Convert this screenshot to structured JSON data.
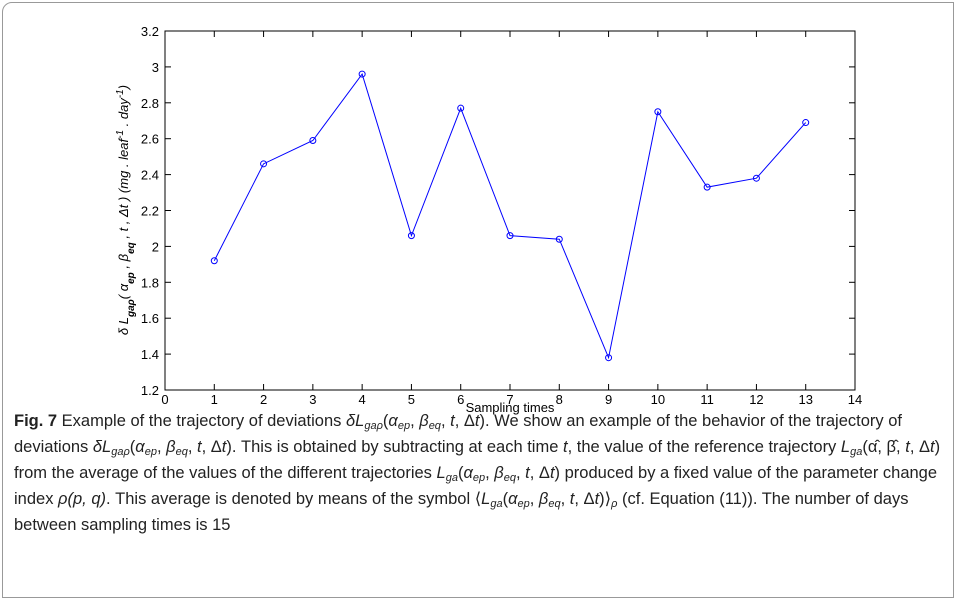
{
  "chart_data": {
    "type": "line",
    "xlabel": "Sampling times",
    "ylabel": [
      [
        "δ L",
        ""
      ],
      [
        "gaρ",
        "sub"
      ],
      [
        "( ",
        ""
      ],
      [
        "α",
        ""
      ],
      [
        "ep",
        "sub"
      ],
      [
        " , ",
        ""
      ],
      [
        "β",
        ""
      ],
      [
        "eq",
        "sub"
      ],
      [
        " , t , Δt ) (mg . leaf",
        ""
      ],
      [
        "-1",
        "sup"
      ],
      [
        " . day",
        ""
      ],
      [
        "-1",
        "sup"
      ],
      [
        ")",
        ""
      ]
    ],
    "x": [
      1,
      2,
      3,
      4,
      5,
      6,
      7,
      8,
      9,
      10,
      11,
      12,
      13
    ],
    "series": [
      {
        "color": "#0000ff",
        "values": [
          1.92,
          2.46,
          2.59,
          2.96,
          2.06,
          2.77,
          2.06,
          2.04,
          1.38,
          2.75,
          2.33,
          2.38,
          2.69
        ]
      }
    ],
    "xlim": [
      0,
      14
    ],
    "xticks": [
      0,
      1,
      2,
      3,
      4,
      5,
      6,
      7,
      8,
      9,
      10,
      11,
      12,
      13,
      14
    ],
    "ylim": [
      1.2,
      3.2
    ],
    "yticks": [
      1.2,
      1.4,
      1.6,
      1.8,
      2,
      2.2,
      2.4,
      2.6,
      2.8,
      3,
      3.2
    ]
  },
  "caption": [
    [
      "Fig. 7",
      "b"
    ],
    [
      " Example of the trajectory of deviations ",
      ""
    ],
    [
      "δL",
      "i"
    ],
    [
      "gaρ",
      "sub"
    ],
    [
      "(",
      ""
    ],
    [
      "α",
      "i"
    ],
    [
      "ep",
      "sub"
    ],
    [
      ", ",
      ""
    ],
    [
      "β",
      "i"
    ],
    [
      "eq",
      "sub"
    ],
    [
      ", ",
      ""
    ],
    [
      "t",
      "i"
    ],
    [
      ", Δ",
      ""
    ],
    [
      "t",
      "i"
    ],
    [
      "). We show an example of the behavior of the trajectory of deviations ",
      ""
    ],
    [
      "δL",
      "i"
    ],
    [
      "gaρ",
      "sub"
    ],
    [
      "(",
      ""
    ],
    [
      "α",
      "i"
    ],
    [
      "ep",
      "sub"
    ],
    [
      ", ",
      ""
    ],
    [
      "β",
      "i"
    ],
    [
      "eq",
      "sub"
    ],
    [
      ", ",
      ""
    ],
    [
      "t",
      "i"
    ],
    [
      ", Δ",
      ""
    ],
    [
      "t",
      "i"
    ],
    [
      "). This is obtained by subtracting at each time ",
      ""
    ],
    [
      "t",
      "i"
    ],
    [
      ", the value of the reference trajectory ",
      ""
    ],
    [
      "L",
      "i"
    ],
    [
      "ga",
      "sub"
    ],
    [
      "(α̂, β̂, ",
      ""
    ],
    [
      "t",
      "i"
    ],
    [
      ", Δ",
      ""
    ],
    [
      "t",
      "i"
    ],
    [
      ") from the average of the values of the different trajectories ",
      ""
    ],
    [
      "L",
      "i"
    ],
    [
      "ga",
      "sub"
    ],
    [
      "(",
      ""
    ],
    [
      "α",
      "i"
    ],
    [
      "ep",
      "sub"
    ],
    [
      ", ",
      ""
    ],
    [
      "β",
      "i"
    ],
    [
      "eq",
      "sub"
    ],
    [
      ", ",
      ""
    ],
    [
      "t",
      "i"
    ],
    [
      ", Δ",
      ""
    ],
    [
      "t",
      "i"
    ],
    [
      ") produced by a fixed value of the parameter change index ",
      ""
    ],
    [
      "ρ(p, q)",
      "i"
    ],
    [
      ". This average is denoted by means of the symbol ⟨",
      ""
    ],
    [
      "L",
      "i"
    ],
    [
      "ga",
      "sub"
    ],
    [
      "(",
      ""
    ],
    [
      "α",
      "i"
    ],
    [
      "ep",
      "sub"
    ],
    [
      ", ",
      ""
    ],
    [
      "β",
      "i"
    ],
    [
      "eq",
      "sub"
    ],
    [
      ", ",
      ""
    ],
    [
      "t",
      "i"
    ],
    [
      ", Δ",
      ""
    ],
    [
      "t",
      "i"
    ],
    [
      ")⟩",
      ""
    ],
    [
      "ρ",
      "sub"
    ],
    [
      " (cf. Equation (11)). The number of days between sampling times is 15",
      ""
    ]
  ]
}
